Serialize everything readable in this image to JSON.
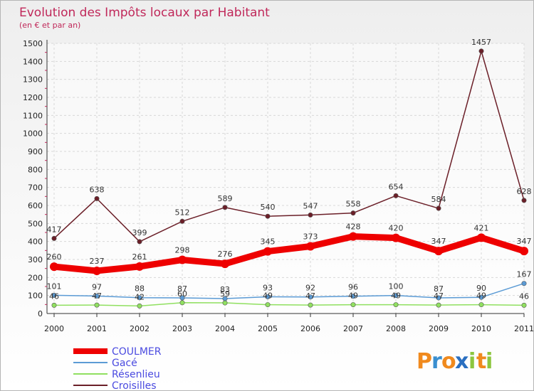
{
  "chart_data": {
    "type": "line",
    "title": "Evolution des Impôts locaux par Habitant",
    "subtitle": "(en € et par an)",
    "categories": [
      "2000",
      "2001",
      "2002",
      "2003",
      "2004",
      "2005",
      "2006",
      "2007",
      "2008",
      "2009",
      "2010",
      "2011"
    ],
    "ylim": [
      0,
      1500
    ],
    "yticks": [
      0,
      100,
      200,
      300,
      400,
      500,
      600,
      700,
      800,
      900,
      1000,
      1100,
      1200,
      1300,
      1400,
      1500
    ],
    "grid": true,
    "legend_position": "bottom-left",
    "series": [
      {
        "name": "COULMER",
        "color": "#ee0000",
        "values": [
          260,
          237,
          261,
          298,
          276,
          345,
          373,
          428,
          420,
          347,
          421,
          347
        ]
      },
      {
        "name": "Gacé",
        "color": "#5b9bd5",
        "values": [
          101,
          97,
          88,
          87,
          83,
          93,
          92,
          96,
          100,
          87,
          90,
          167
        ]
      },
      {
        "name": "Résenlieu",
        "color": "#90e060",
        "values": [
          46,
          47,
          42,
          60,
          59,
          49,
          47,
          49,
          49,
          47,
          49,
          46
        ]
      },
      {
        "name": "Croisilles",
        "color": "#6b1f28",
        "values": [
          417,
          638,
          399,
          512,
          589,
          540,
          547,
          558,
          654,
          584,
          1457,
          628
        ]
      }
    ]
  },
  "brand": {
    "text": "Proxiti",
    "letters": [
      "P",
      "r",
      "o",
      "x",
      "i",
      "t",
      "i"
    ]
  }
}
